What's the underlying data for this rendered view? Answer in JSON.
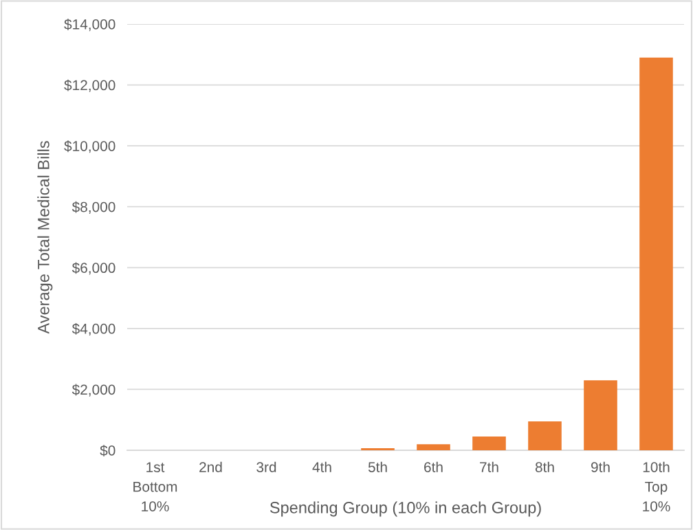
{
  "chart_data": {
    "type": "bar",
    "xlabel": "Spending Group (10% in each Group)",
    "ylabel": "Average Total Medical Bills",
    "categories": [
      "1st\nBottom\n10%",
      "2nd",
      "3rd",
      "4th",
      "5th",
      "6th",
      "7th",
      "8th",
      "9th",
      "10th\nTop\n10%"
    ],
    "values": [
      0,
      0,
      0,
      0,
      70,
      200,
      450,
      950,
      2300,
      12900
    ],
    "color": "#ed7d31",
    "ylim": [
      0,
      14000
    ],
    "yticks": [
      {
        "value": 0,
        "label": "$0"
      },
      {
        "value": 2000,
        "label": "$2,000"
      },
      {
        "value": 4000,
        "label": "$4,000"
      },
      {
        "value": 6000,
        "label": "$6,000"
      },
      {
        "value": 8000,
        "label": "$8,000"
      },
      {
        "value": 10000,
        "label": "$10,000"
      },
      {
        "value": 12000,
        "label": "$12,000"
      },
      {
        "value": 14000,
        "label": "$14,000"
      }
    ],
    "grid": "y"
  }
}
